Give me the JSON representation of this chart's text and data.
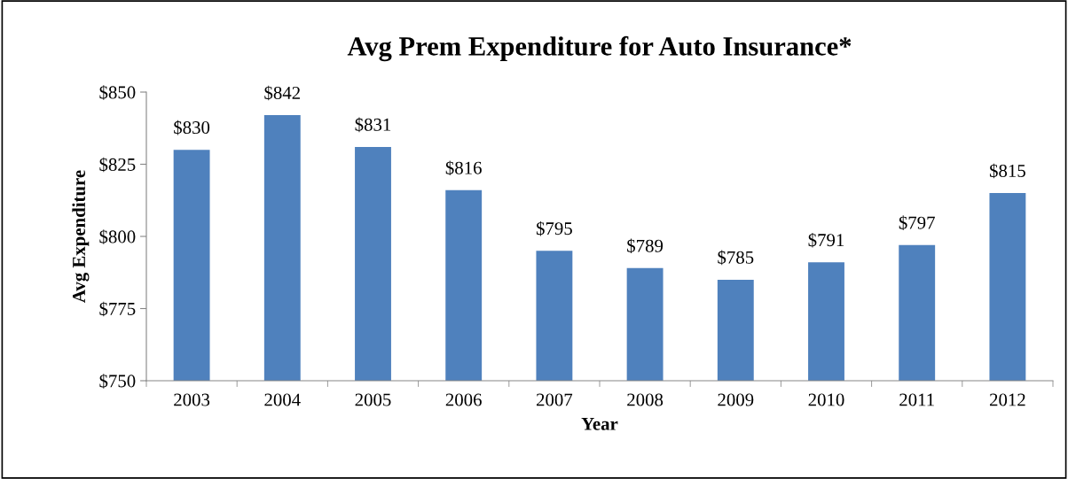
{
  "chart_data": {
    "type": "bar",
    "title": "Avg Prem Expenditure for Auto Insurance*",
    "xlabel": "Year",
    "ylabel": "Avg Expenditure",
    "categories": [
      "2003",
      "2004",
      "2005",
      "2006",
      "2007",
      "2008",
      "2009",
      "2010",
      "2011",
      "2012"
    ],
    "values": [
      830,
      842,
      831,
      816,
      795,
      789,
      785,
      791,
      797,
      815
    ],
    "value_labels": [
      "$830",
      "$842",
      "$831",
      "$816",
      "$795",
      "$789",
      "$785",
      "$791",
      "$797",
      "$815"
    ],
    "color": "#4f81bd",
    "ylim": [
      750,
      850
    ],
    "yticks": [
      {
        "value": 750,
        "label": "$750"
      },
      {
        "value": 775,
        "label": "$775"
      },
      {
        "value": 800,
        "label": "$800"
      },
      {
        "value": 825,
        "label": "$825"
      },
      {
        "value": 850,
        "label": "$850"
      }
    ],
    "grid": false,
    "legend": false
  }
}
